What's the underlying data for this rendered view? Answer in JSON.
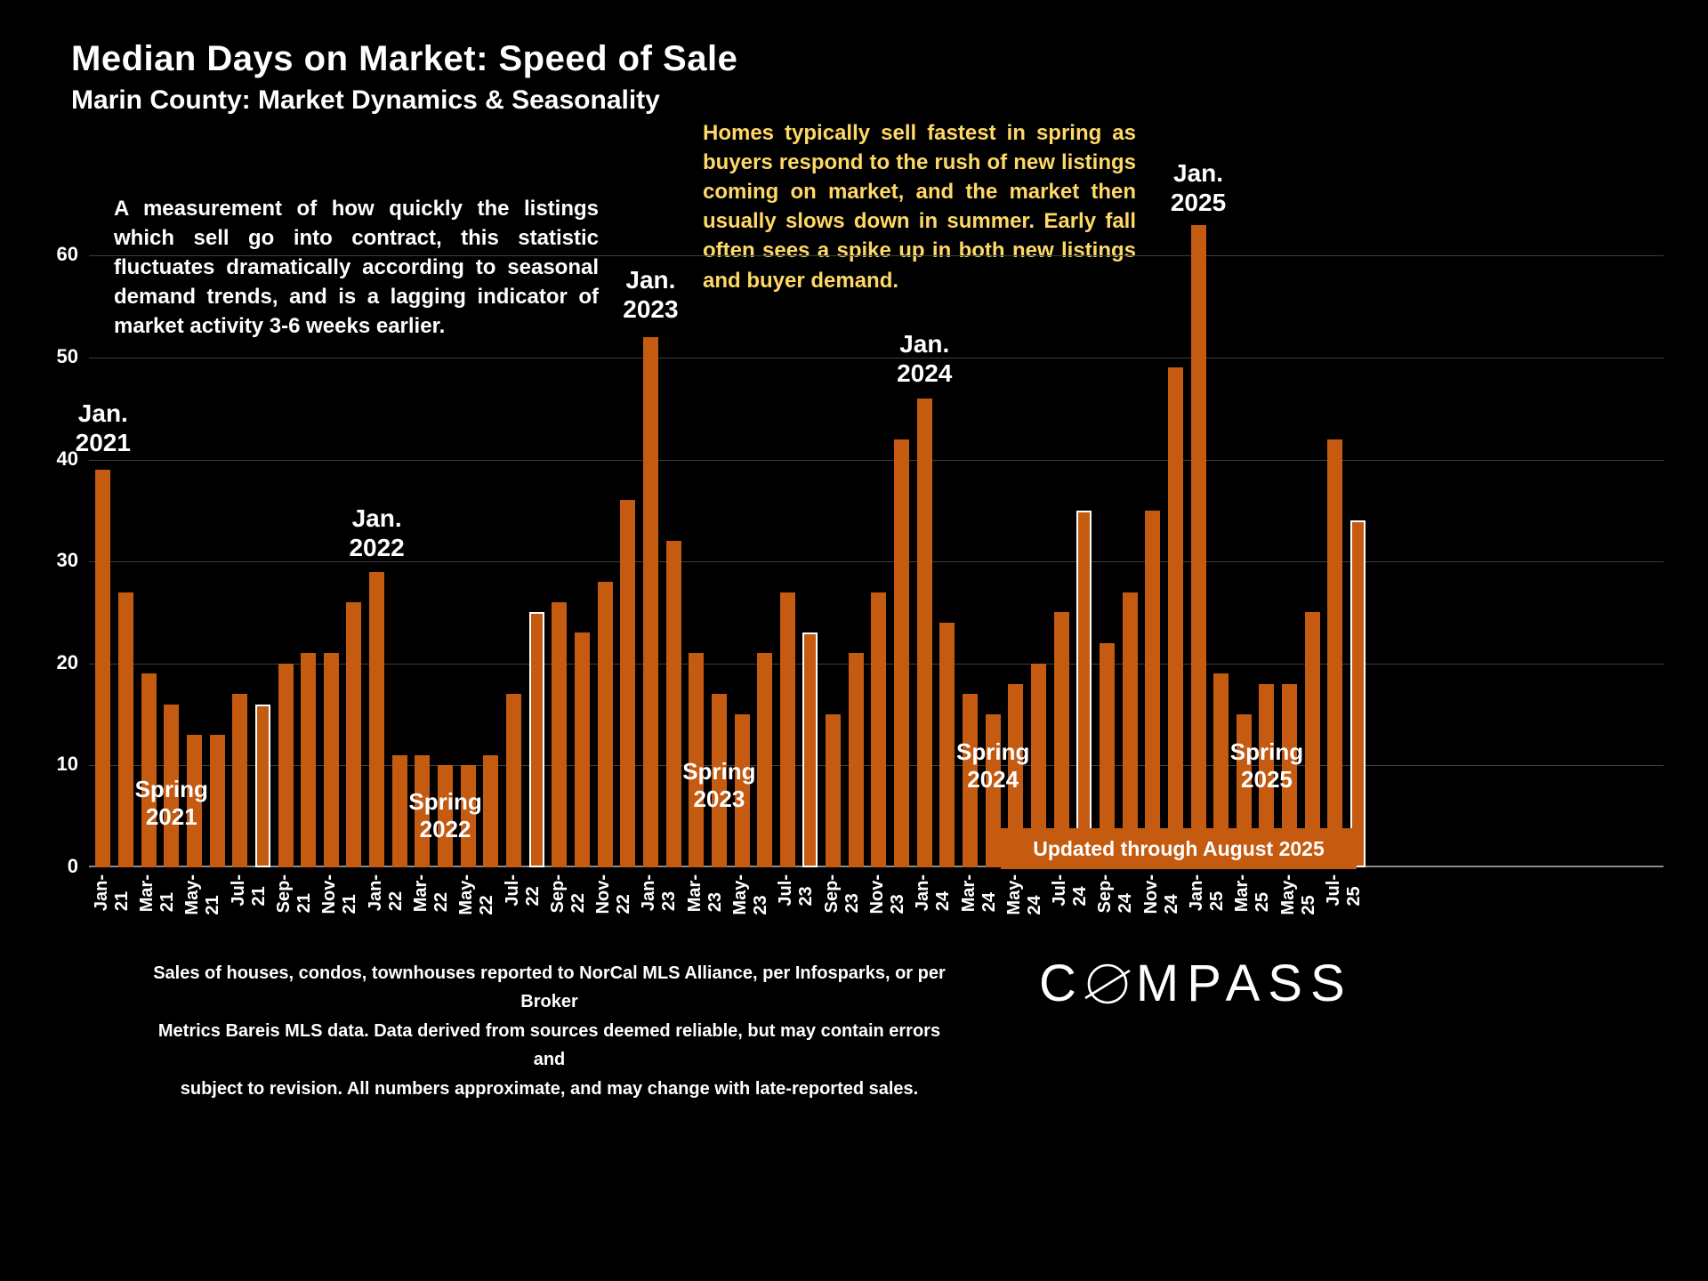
{
  "slide": {
    "title": "Median Days on Market:  Speed of Sale",
    "subtitle": "Marin County: Market Dynamics & Seasonality"
  },
  "notes": {
    "white_note": "A measurement of how quickly the listings which sell go into contract, this statistic fluctuates dramatically according to seasonal demand trends, and is a lagging indicator of market activity 3-6 weeks earlier.",
    "yellow_note": "Homes typically sell fastest in spring as buyers respond to the rush of new listings coming on market, and the market then usually slows down in summer. Early fall often sees a spike up in both new listings and buyer demand.",
    "yellow_color": "#FFD966"
  },
  "banner": {
    "label": "Updated through August 2025",
    "color": "#C55A11"
  },
  "footer": {
    "line1": "Sales of houses, condos, townhouses reported to NorCal MLS Alliance, per Infosparks, or per Broker",
    "line2": "Metrics Bareis MLS data. Data derived from sources deemed reliable, but may contain errors and",
    "line3": "subject to revision. All numbers approximate, and may change with late-reported sales."
  },
  "logo": {
    "first": "C",
    "rest": "MPASS",
    "name": "Compass"
  },
  "annotations": {
    "jan_labels": [
      {
        "line1": "Jan.",
        "line2": "2021",
        "month": "Jan-21"
      },
      {
        "line1": "Jan.",
        "line2": "2022",
        "month": "Jan-22"
      },
      {
        "line1": "Jan.",
        "line2": "2023",
        "month": "Jan-23"
      },
      {
        "line1": "Jan.",
        "line2": "2024",
        "month": "Jan-24"
      },
      {
        "line1": "Jan.",
        "line2": "2025",
        "month": "Jan-25"
      }
    ],
    "spring_labels": [
      {
        "line1": "Spring",
        "line2": "2021",
        "month": "Apr-21"
      },
      {
        "line1": "Spring",
        "line2": "2022",
        "month": "Apr-22"
      },
      {
        "line1": "Spring",
        "line2": "2023",
        "month": "Apr-23"
      },
      {
        "line1": "Spring",
        "line2": "2024",
        "month": "Apr-24"
      },
      {
        "line1": "Spring",
        "line2": "2025",
        "month": "Apr-25"
      }
    ]
  },
  "chart_data": {
    "type": "bar",
    "title": "Median Days on Market: Speed of Sale",
    "xlabel": "",
    "ylabel": "",
    "ylim": [
      0,
      65
    ],
    "yticks": [
      0,
      10,
      20,
      30,
      40,
      50,
      60
    ],
    "grid": true,
    "legend": false,
    "bar_color": "#C55A11",
    "highlight_outline": "#FFFFFF",
    "categories": [
      "Jan-21",
      "Feb-21",
      "Mar-21",
      "Apr-21",
      "May-21",
      "Jun-21",
      "Jul-21",
      "Aug-21",
      "Sep-21",
      "Oct-21",
      "Nov-21",
      "Dec-21",
      "Jan-22",
      "Feb-22",
      "Mar-22",
      "Apr-22",
      "May-22",
      "Jun-22",
      "Jul-22",
      "Aug-22",
      "Sep-22",
      "Oct-22",
      "Nov-22",
      "Dec-22",
      "Jan-23",
      "Feb-23",
      "Mar-23",
      "Apr-23",
      "May-23",
      "Jun-23",
      "Jul-23",
      "Aug-23",
      "Sep-23",
      "Oct-23",
      "Nov-23",
      "Dec-23",
      "Jan-24",
      "Feb-24",
      "Mar-24",
      "Apr-24",
      "May-24",
      "Jun-24",
      "Jul-24",
      "Aug-24",
      "Sep-24",
      "Oct-24",
      "Nov-24",
      "Dec-24",
      "Jan-25",
      "Feb-25",
      "Mar-25",
      "Apr-25",
      "May-25",
      "Jun-25",
      "Jul-25",
      "Aug-25"
    ],
    "values": [
      39,
      27,
      19,
      16,
      13,
      13,
      17,
      16,
      20,
      21,
      21,
      26,
      29,
      11,
      11,
      10,
      10,
      11,
      17,
      25,
      26,
      23,
      28,
      36,
      52,
      32,
      21,
      17,
      15,
      21,
      27,
      23,
      15,
      21,
      27,
      42,
      46,
      24,
      17,
      15,
      18,
      20,
      25,
      35,
      22,
      27,
      35,
      49,
      63,
      19,
      15,
      18,
      18,
      25,
      42,
      34
    ],
    "highlighted_categories": [
      "Aug-21",
      "Aug-22",
      "Aug-23",
      "Aug-24",
      "Aug-25"
    ],
    "xtick_every": 2
  }
}
